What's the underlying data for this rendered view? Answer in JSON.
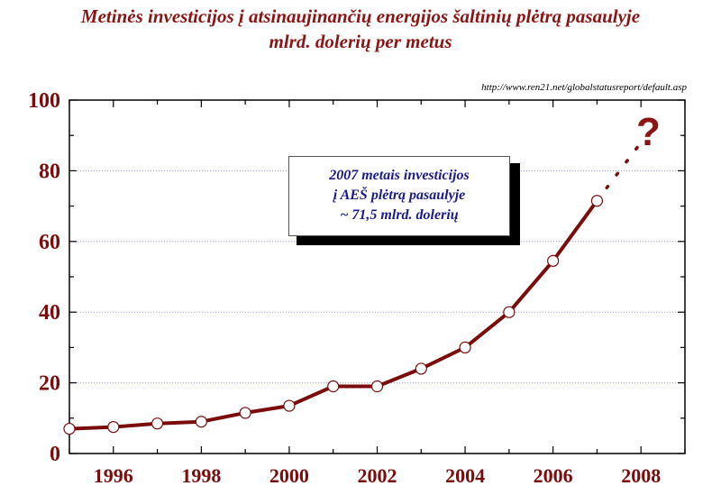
{
  "header": {
    "title_line1": "Metinės investicijos  į atsinaujinančių energijos šaltinių plėtrą pasaulyje",
    "title_line2": "mlrd. dolerių per metus",
    "source": "http://www.ren21.net/globalstatusreport/default.asp"
  },
  "annotation": {
    "line1": "2007 metais investicijos",
    "line2": "į AEŠ plėtrą pasaulyje",
    "line3": "~ 71,5 mlrd. dolerių",
    "question": "?"
  },
  "colors": {
    "series": "#7a0c0c",
    "title": "#8b1414",
    "box_text": "#1a1a8c",
    "grid": "#9a9ad8"
  },
  "chart_data": {
    "type": "line",
    "title": "Metinės investicijos  į atsinaujinančių energijos šaltinių plėtrą pasaulyje",
    "subtitle": "mlrd. dolerių per metus",
    "xlabel": "",
    "ylabel": "",
    "x": [
      1995,
      1996,
      1997,
      1998,
      1999,
      2000,
      2001,
      2002,
      2003,
      2004,
      2005,
      2006,
      2007
    ],
    "y": [
      7,
      7.5,
      8.5,
      9,
      11.5,
      13.5,
      19,
      19,
      24,
      30,
      40,
      54.5,
      71.5
    ],
    "xlim": [
      1995,
      2009
    ],
    "ylim": [
      0,
      100
    ],
    "xticks": [
      1996,
      1998,
      2000,
      2002,
      2004,
      2006,
      2008
    ],
    "yticks": [
      0,
      20,
      40,
      60,
      80,
      100
    ],
    "grid": "horizontal dotted",
    "projection": {
      "x": [
        2007,
        2008
      ],
      "y": [
        71.5,
        88
      ],
      "style": "dotted"
    },
    "markers": "open circles"
  }
}
